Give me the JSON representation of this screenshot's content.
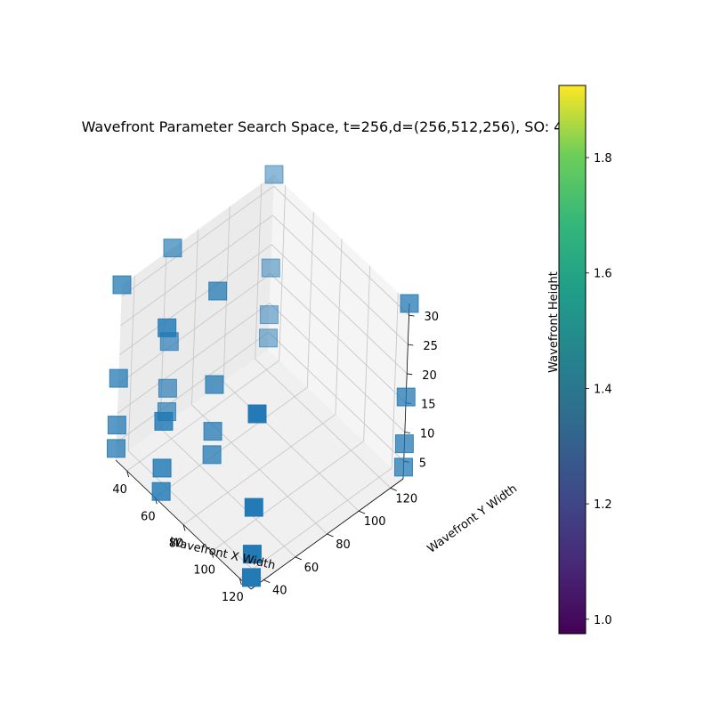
{
  "chart_data": {
    "type": "scatter",
    "projection": "3d",
    "marker": "square",
    "title": "Wavefront Parameter Search Space, t=256,d=(256,512,256), SO: 4",
    "xlabel": "Wavefront X Width",
    "ylabel": "Wavefront Y Width",
    "zlabel": "Wavefront Height",
    "xticks": [
      "40",
      "60",
      "80",
      "100",
      "120"
    ],
    "yticks": [
      "40",
      "60",
      "80",
      "100",
      "120"
    ],
    "zticks": [
      "5",
      "10",
      "15",
      "20",
      "25",
      "30"
    ],
    "xlim": [
      32,
      128
    ],
    "ylim": [
      32,
      128
    ],
    "zlim": [
      2,
      32
    ],
    "grid": true,
    "colorbar": {
      "cmap": "viridis",
      "range": [
        0.975,
        1.925
      ],
      "ticks": [
        "1.0",
        "1.2",
        "1.4",
        "1.6",
        "1.8"
      ],
      "tick_values": [
        1.0,
        1.2,
        1.4,
        1.6,
        1.8
      ]
    },
    "point_color": "#1f77b4",
    "points": [
      {
        "x": 32,
        "y": 32,
        "z": 4
      },
      {
        "x": 32,
        "y": 32,
        "z": 8
      },
      {
        "x": 32,
        "y": 32,
        "z": 16
      },
      {
        "x": 32,
        "y": 32,
        "z": 32
      },
      {
        "x": 64,
        "y": 32,
        "z": 4
      },
      {
        "x": 64,
        "y": 32,
        "z": 8
      },
      {
        "x": 64,
        "y": 32,
        "z": 16
      },
      {
        "x": 64,
        "y": 32,
        "z": 32
      },
      {
        "x": 128,
        "y": 32,
        "z": 4
      },
      {
        "x": 128,
        "y": 32,
        "z": 8
      },
      {
        "x": 128,
        "y": 32,
        "z": 16
      },
      {
        "x": 128,
        "y": 32,
        "z": 32
      },
      {
        "x": 32,
        "y": 64,
        "z": 4
      },
      {
        "x": 32,
        "y": 64,
        "z": 8
      },
      {
        "x": 32,
        "y": 64,
        "z": 16
      },
      {
        "x": 32,
        "y": 64,
        "z": 32
      },
      {
        "x": 64,
        "y": 64,
        "z": 4
      },
      {
        "x": 64,
        "y": 64,
        "z": 8
      },
      {
        "x": 64,
        "y": 64,
        "z": 16
      },
      {
        "x": 64,
        "y": 64,
        "z": 32
      },
      {
        "x": 32,
        "y": 128,
        "z": 4
      },
      {
        "x": 32,
        "y": 128,
        "z": 8
      },
      {
        "x": 32,
        "y": 128,
        "z": 16
      },
      {
        "x": 32,
        "y": 128,
        "z": 32
      },
      {
        "x": 128,
        "y": 128,
        "z": 4
      },
      {
        "x": 128,
        "y": 128,
        "z": 8
      },
      {
        "x": 128,
        "y": 128,
        "z": 16
      },
      {
        "x": 128,
        "y": 128,
        "z": 32
      }
    ]
  }
}
